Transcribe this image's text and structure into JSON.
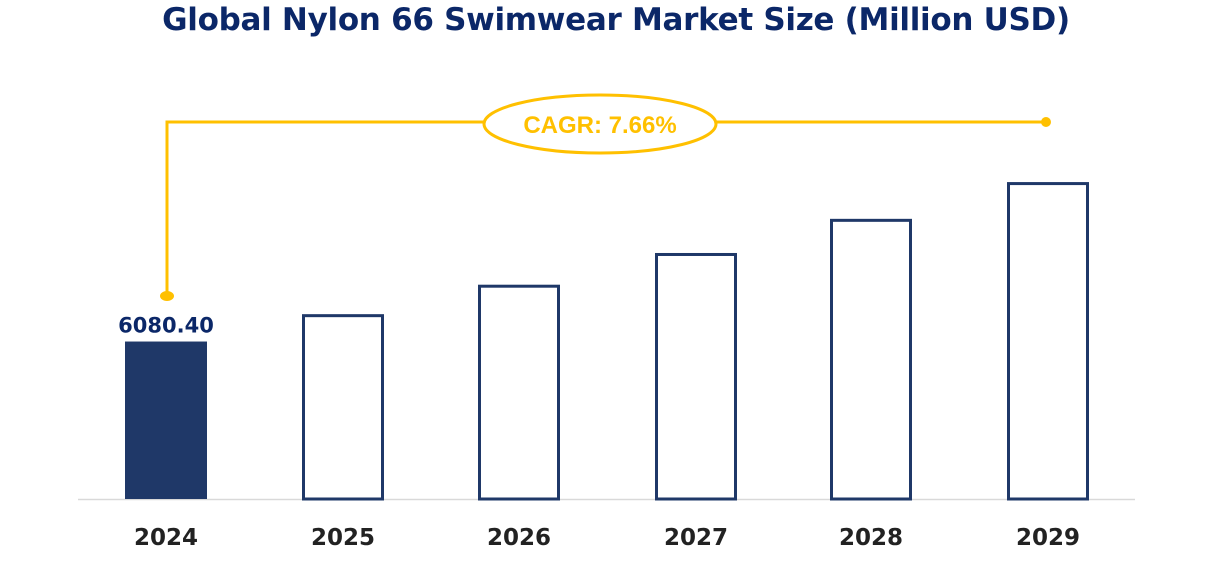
{
  "chart_data": {
    "type": "bar",
    "title": "Global Nylon 66 Swimwear Market Size (Million USD)",
    "xlabel": "",
    "ylabel": "",
    "categories": [
      "2024",
      "2025",
      "2026",
      "2027",
      "2028",
      "2029"
    ],
    "values": [
      6080.4,
      6546.1,
      7047.6,
      7587.5,
      8168.7,
      8794.4
    ],
    "data_labels": [
      "6080.40",
      "",
      "",
      "",
      "",
      ""
    ],
    "ylim": [
      3400,
      9000
    ],
    "grid": false,
    "annotation": "CAGR: 7.66%",
    "colors": {
      "title": "#0b2768",
      "filled_bar": "#1f3868",
      "outline_bar": "#1f3868",
      "cagr": "#ffc000",
      "year_label": "#222222",
      "value_label": "#0b2768"
    }
  }
}
